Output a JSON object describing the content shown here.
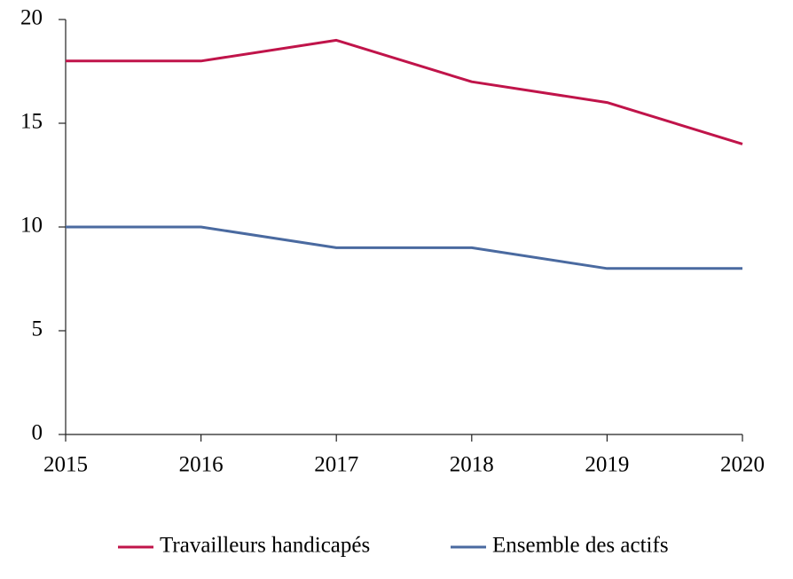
{
  "chart_data": {
    "type": "line",
    "x": [
      2015,
      2016,
      2017,
      2018,
      2019,
      2020
    ],
    "xlim": [
      2015,
      2020
    ],
    "xticks": [
      2015,
      2016,
      2017,
      2018,
      2019,
      2020
    ],
    "ylim": [
      0,
      20
    ],
    "yticks": [
      0,
      5,
      10,
      15,
      20
    ],
    "grid": false,
    "legend": "bottom",
    "series": [
      {
        "name": "Travailleurs handicapés",
        "color": "#c0144a",
        "values": [
          18,
          18,
          19,
          17,
          16,
          14
        ]
      },
      {
        "name": "Ensemble des actifs",
        "color": "#4a6aa0",
        "values": [
          10,
          10,
          9,
          9,
          8,
          8
        ]
      }
    ]
  }
}
